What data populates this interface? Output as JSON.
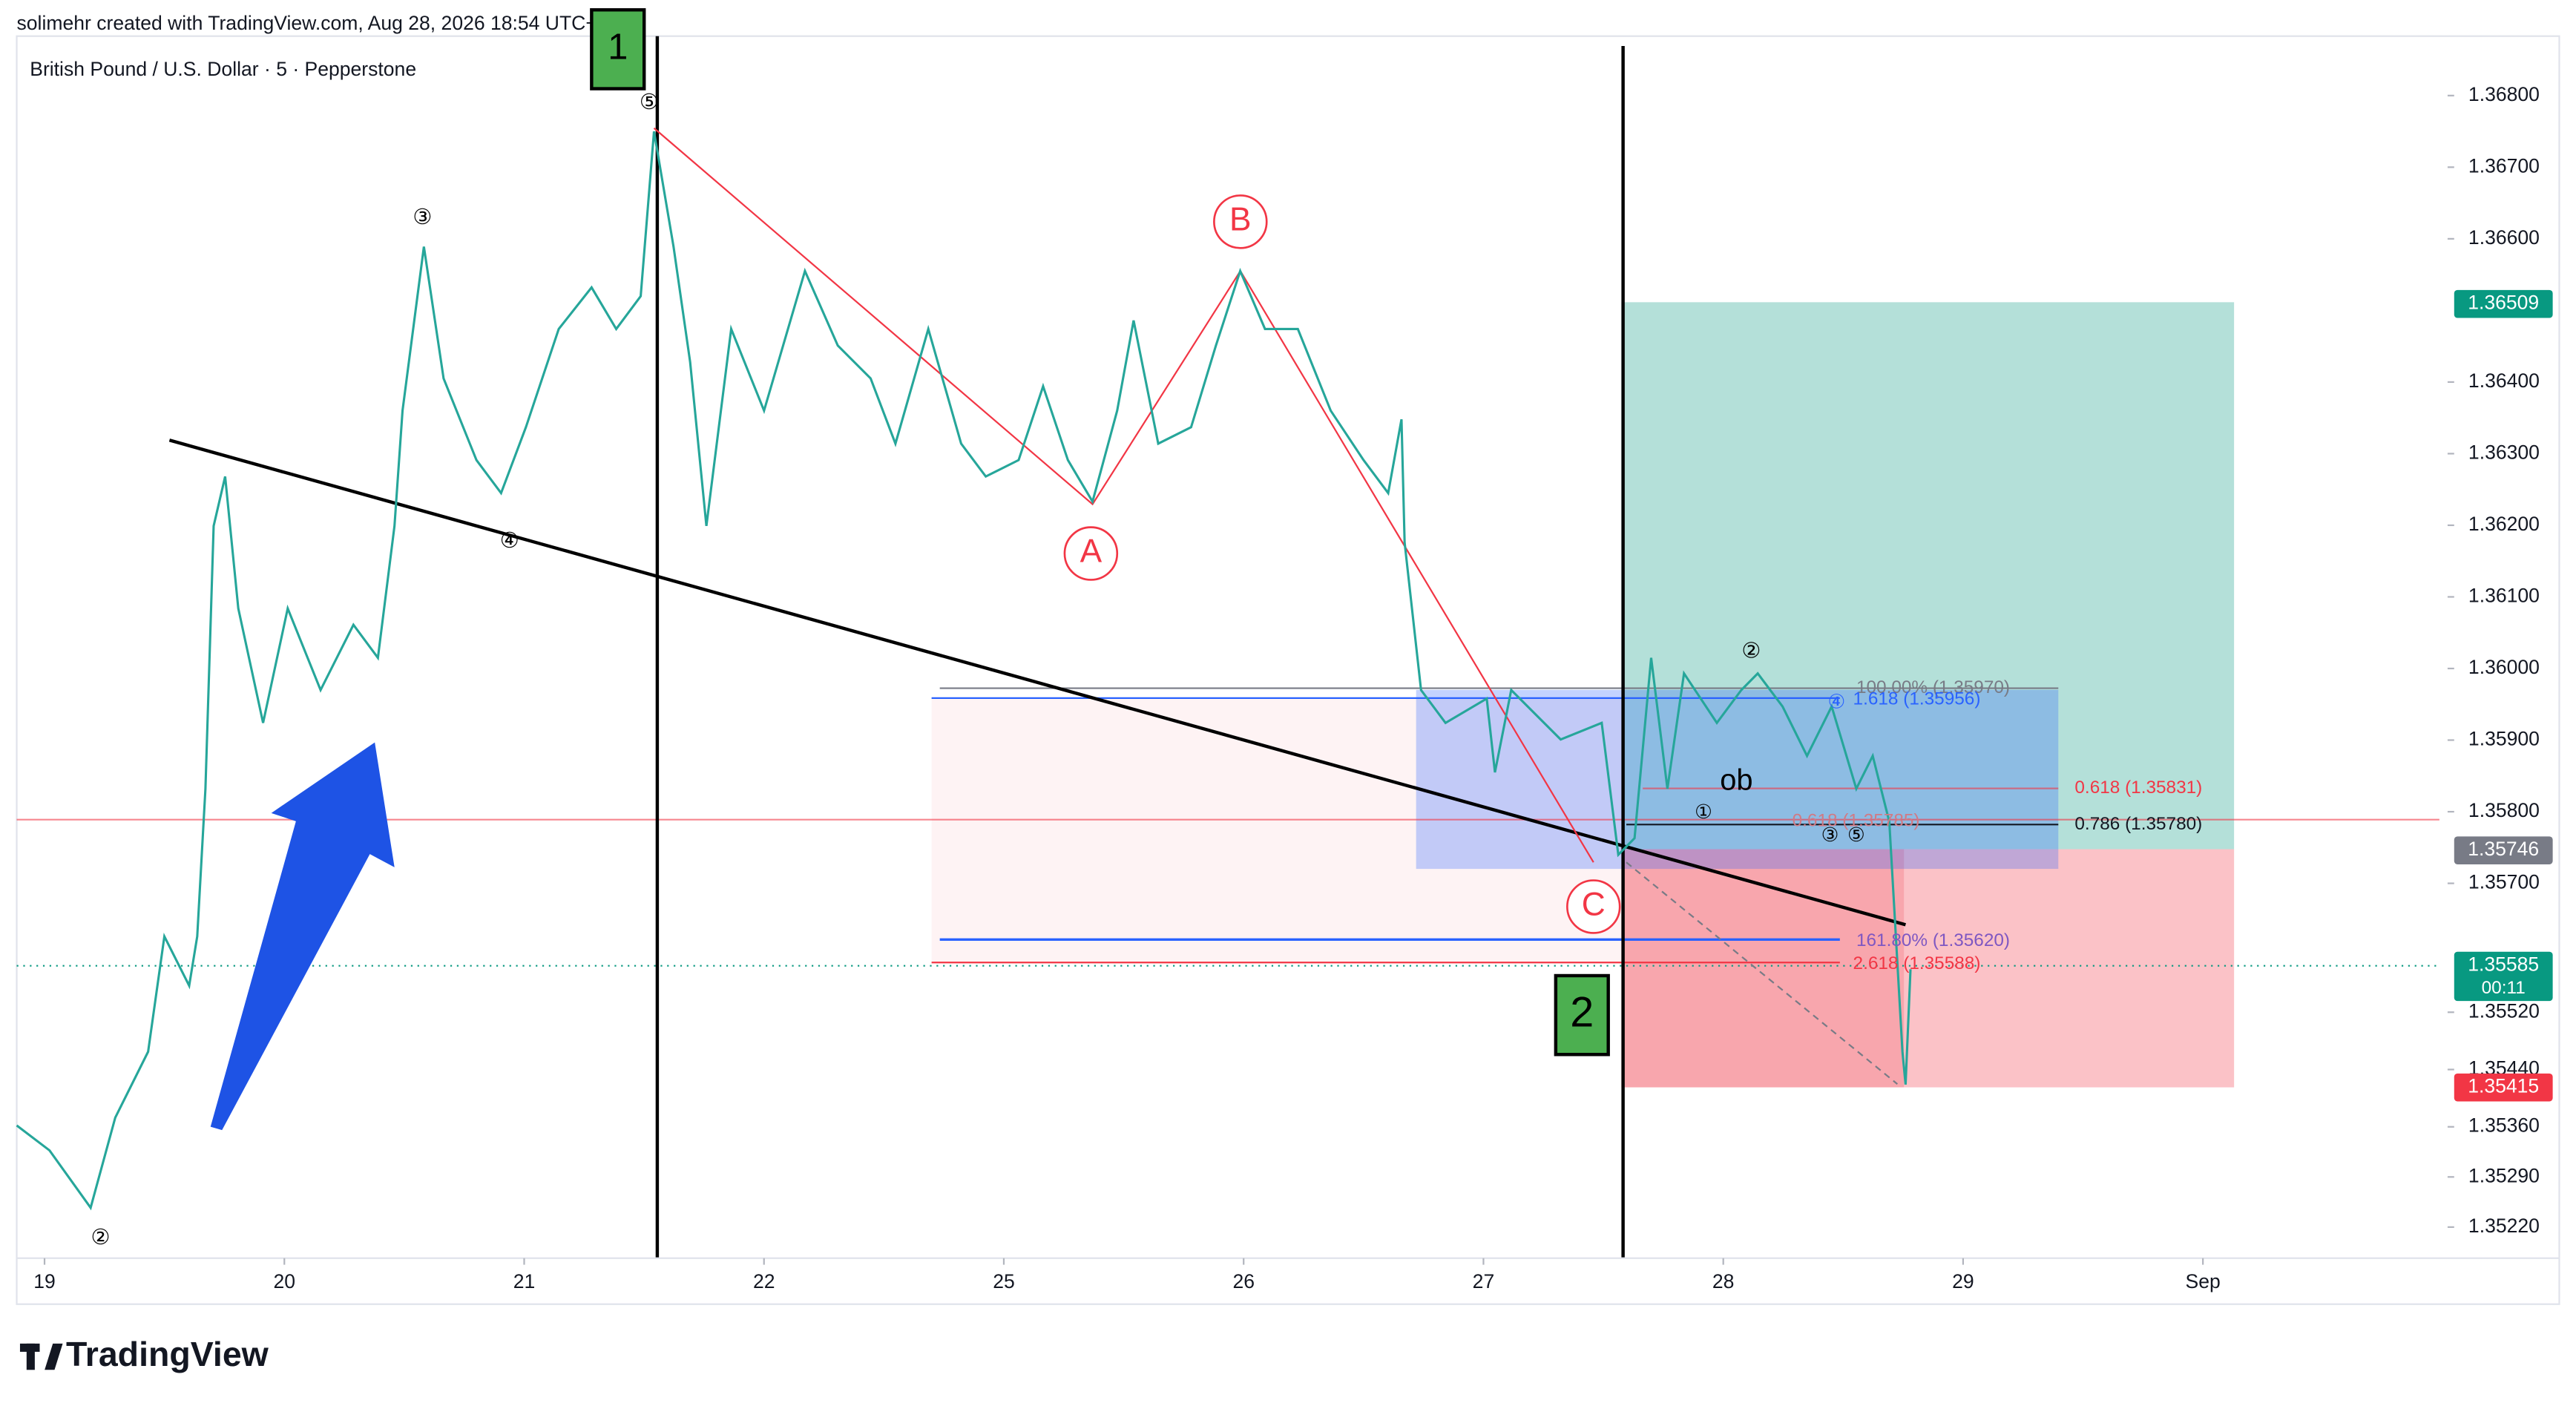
{
  "header": {
    "credit": "solimehr created with TradingView.com, Aug 28, 2026 18:54 UTC+3:30",
    "logo": "TradingView"
  },
  "chart_data": {
    "type": "line",
    "title": "British Pound / U.S. Dollar · 5 · Pepperstone",
    "color": "#26a69a",
    "x": [
      -0.116,
      0.021,
      0.192,
      0.295,
      0.432,
      0.5,
      0.603,
      0.637,
      0.671,
      0.705,
      0.753,
      0.808,
      0.911,
      1.014,
      1.151,
      1.288,
      1.39,
      1.459,
      1.493,
      1.582,
      1.664,
      1.801,
      1.904,
      2.007,
      2.144,
      2.281,
      2.384,
      2.486,
      2.541,
      2.623,
      2.692,
      2.76,
      2.863,
      3.0,
      3.171,
      3.308,
      3.445,
      3.548,
      3.685,
      3.822,
      3.925,
      4.062,
      4.164,
      4.267,
      4.37,
      4.473,
      4.541,
      4.644,
      4.781,
      4.884,
      4.986,
      5.089,
      5.226,
      5.363,
      5.5,
      5.603,
      5.658,
      5.671,
      5.74,
      5.842,
      6.014,
      6.048,
      6.116,
      6.322,
      6.493,
      6.562,
      6.63,
      6.699,
      6.767,
      6.836,
      6.973,
      7.075,
      7.144,
      7.247,
      7.349,
      7.452,
      7.555,
      7.623,
      7.692,
      7.747,
      7.76,
      7.781
    ],
    "values": [
      1.35362,
      1.35327,
      1.35247,
      1.35373,
      1.35465,
      1.35626,
      1.35557,
      1.35626,
      1.35832,
      1.36199,
      1.36268,
      1.36084,
      1.35924,
      1.36084,
      1.3597,
      1.36061,
      1.36015,
      1.36199,
      1.3636,
      1.36589,
      1.36405,
      1.36291,
      1.36245,
      1.36337,
      1.36474,
      1.36532,
      1.36474,
      1.3652,
      1.3675,
      1.36589,
      1.36428,
      1.36199,
      1.36474,
      1.3636,
      1.36555,
      1.36451,
      1.36405,
      1.36314,
      1.36474,
      1.36314,
      1.36268,
      1.36291,
      1.36394,
      1.36291,
      1.36233,
      1.3636,
      1.36486,
      1.36314,
      1.36337,
      1.36451,
      1.36555,
      1.36474,
      1.36474,
      1.3636,
      1.36291,
      1.36245,
      1.36348,
      1.36176,
      1.3597,
      1.35924,
      1.35958,
      1.35855,
      1.3597,
      1.35901,
      1.35924,
      1.3574,
      1.35763,
      1.36015,
      1.35832,
      1.35993,
      1.35924,
      1.3597,
      1.35993,
      1.35947,
      1.35878,
      1.35947,
      1.35832,
      1.35878,
      1.35786,
      1.35465,
      1.35419,
      1.3558
    ],
    "xlim": [
      -0.116,
      9.986
    ],
    "xticks": [
      {
        "value": 0,
        "label": "19"
      },
      {
        "value": 1,
        "label": "20"
      },
      {
        "value": 2,
        "label": "21"
      },
      {
        "value": 3,
        "label": "22"
      },
      {
        "value": 4,
        "label": "25"
      },
      {
        "value": 5,
        "label": "26"
      },
      {
        "value": 6,
        "label": "27"
      },
      {
        "value": 7,
        "label": "28"
      },
      {
        "value": 8,
        "label": "29"
      },
      {
        "value": 9,
        "label": "Sep"
      }
    ],
    "ylim": [
      1.35172,
      1.36883
    ],
    "yticks": [
      {
        "value": 1.368,
        "label": "1.36800"
      },
      {
        "value": 1.367,
        "label": "1.36700"
      },
      {
        "value": 1.366,
        "label": "1.36600"
      },
      {
        "value": 1.364,
        "label": "1.36400"
      },
      {
        "value": 1.363,
        "label": "1.36300"
      },
      {
        "value": 1.362,
        "label": "1.36200"
      },
      {
        "value": 1.361,
        "label": "1.36100"
      },
      {
        "value": 1.36,
        "label": "1.36000"
      },
      {
        "value": 1.359,
        "label": "1.35900"
      },
      {
        "value": 1.358,
        "label": "1.35800"
      },
      {
        "value": 1.357,
        "label": "1.35700"
      },
      {
        "value": 1.3552,
        "label": "1.35520"
      },
      {
        "value": 1.3544,
        "label": "1.35440"
      },
      {
        "value": 1.3536,
        "label": "1.35360"
      },
      {
        "value": 1.3529,
        "label": "1.35290"
      },
      {
        "value": 1.3522,
        "label": "1.35220"
      }
    ],
    "price_labels": [
      {
        "value": 1.36509,
        "label": "1.36509",
        "color": "#089981"
      },
      {
        "value": 1.35746,
        "label": "1.35746",
        "color": "#787b86"
      },
      {
        "value": 1.35585,
        "label": "1.35585",
        "color": "#089981",
        "countdown": "00:11"
      },
      {
        "value": 1.35415,
        "label": "1.35415",
        "color": "#f23645"
      }
    ],
    "annotations": [
      "⑤",
      "③",
      "④",
      "②",
      "A",
      "B",
      "C",
      "②",
      "①",
      "③",
      "④",
      "⑤",
      "ob",
      "100.00% (1.35970)",
      "1.618 (1.35956)",
      "0.618 (1.35831)",
      "0.786 (1.35780)",
      "0.618 (1.35785)",
      "161.80% (1.35620)",
      "2.618 (1.35588)",
      "1",
      "2"
    ]
  }
}
